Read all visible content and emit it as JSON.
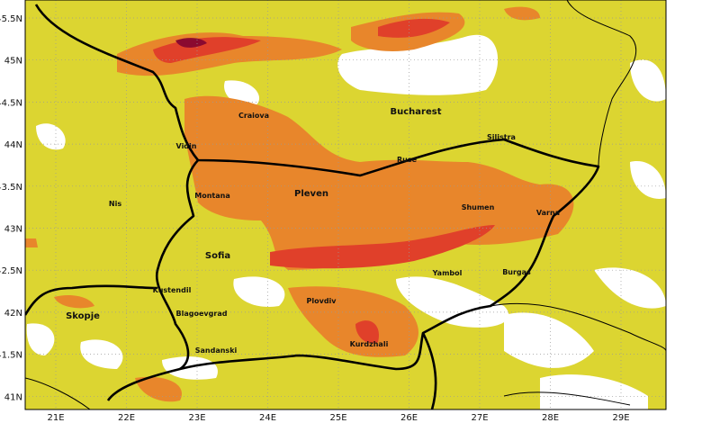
{
  "map": {
    "lat_labels": [
      "45.5N",
      "45N",
      "44.5N",
      "44N",
      "43.5N",
      "43N",
      "42.5N",
      "42N",
      "41.5N",
      "41N"
    ],
    "lon_labels": [
      "21E",
      "22E",
      "23E",
      "24E",
      "25E",
      "26E",
      "27E",
      "28E",
      "29E"
    ],
    "cities": [
      "Craiova",
      "Bucharest",
      "Vidin",
      "Silistra",
      "Ruse",
      "Montana",
      "Pleven",
      "Nis",
      "Shumen",
      "Varna",
      "Sofia",
      "Yambol",
      "Burgas",
      "Kustendil",
      "Skopje",
      "Blagoevgrad",
      "Plovdiv",
      "Sandanski",
      "Kurdzhali"
    ]
  }
}
